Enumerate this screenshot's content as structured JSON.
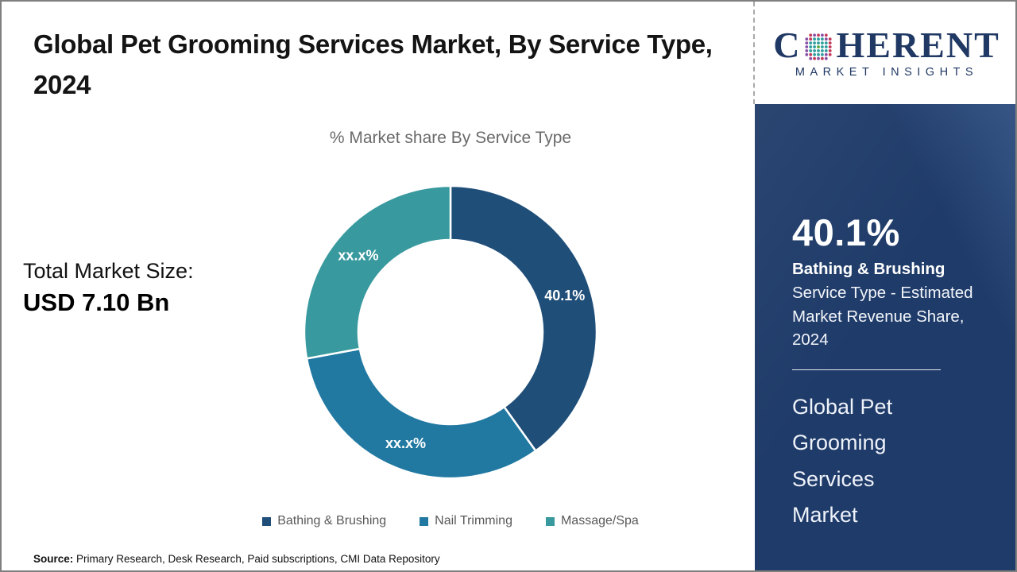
{
  "header": {
    "title": "Global Pet Grooming Services Market, By Service Type, 2024"
  },
  "logo": {
    "word_start": "C",
    "word_end": "HERENT",
    "subtitle": "MARKET INSIGHTS",
    "colors": {
      "navy": "#203864",
      "teal": "#2e9e9e",
      "green": "#56a83c",
      "crimson": "#c13a5a",
      "purple": "#8a4fa5"
    }
  },
  "left_panel": {
    "total_label": "Total Market Size:",
    "total_value": "USD 7.10 Bn"
  },
  "chart_data": {
    "type": "pie",
    "subtype": "donut",
    "title": "% Market share By Service Type",
    "categories": [
      "Bathing & Brushing",
      "Nail Trimming",
      "Massage/Spa"
    ],
    "values": [
      40.1,
      32.0,
      27.9
    ],
    "labels": [
      "40.1%",
      "xx.x%",
      "xx.x%"
    ],
    "colors": [
      "#1f4e79",
      "#2179a2",
      "#38999e"
    ],
    "start_angle_deg": 0,
    "inner_radius_ratio": 0.63,
    "legend_position": "bottom"
  },
  "sidebar": {
    "background": "#1f3b69",
    "stat_value": "40.1%",
    "stat_title": "Bathing & Brushing",
    "stat_description": "Service Type - Estimated Market Revenue Share, 2024",
    "product_title": "Global Pet Grooming Services Market"
  },
  "footer": {
    "source_label": "Source:",
    "source_text": " Primary Research, Desk Research, Paid subscriptions, CMI Data Repository"
  }
}
